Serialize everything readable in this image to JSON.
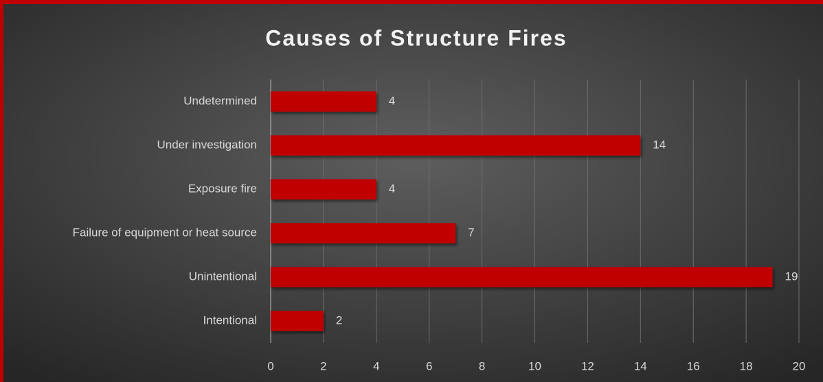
{
  "chart_data": {
    "type": "bar",
    "orientation": "horizontal",
    "title": "Causes of Structure Fires",
    "categories": [
      "Undetermined",
      "Under investigation",
      "Exposure fire",
      "Failure of equipment or heat source",
      "Unintentional",
      "Intentional"
    ],
    "values": [
      4,
      14,
      4,
      7,
      19,
      2
    ],
    "color": "#c00000",
    "xlim": [
      0,
      20
    ],
    "xticks": [
      0,
      2,
      4,
      6,
      8,
      10,
      12,
      14,
      16,
      18,
      20
    ],
    "grid": true
  }
}
